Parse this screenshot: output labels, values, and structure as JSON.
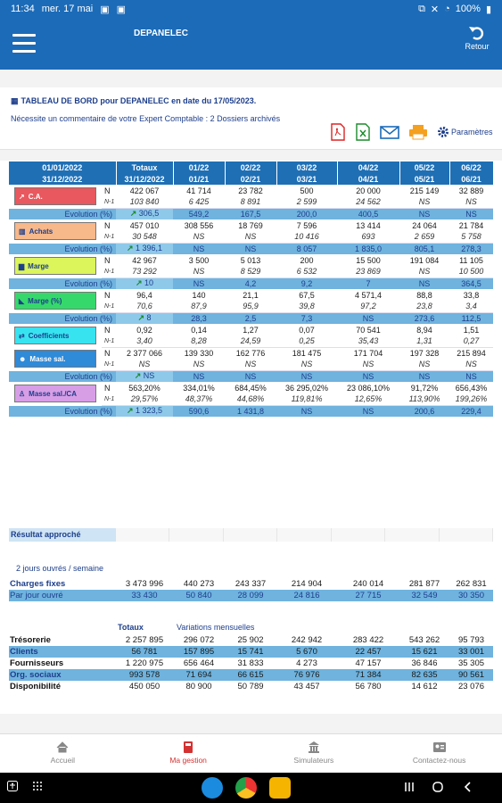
{
  "status_bar": {
    "time": "11:34",
    "date": "mer. 17 mai",
    "battery": "100%"
  },
  "app_bar": {
    "title": "DEPANELEC",
    "back_label": "Retour"
  },
  "info": {
    "title": "TABLEAU DE BORD pour DEPANELEC en date du 17/05/2023.",
    "note": "Nécessite un commentaire de votre Expert Comptable : 2 Dossiers archivés",
    "params_label": "Paramètres"
  },
  "table": {
    "header_top": [
      "01/01/2022",
      "Totaux",
      "01/22",
      "02/22",
      "03/22",
      "04/22",
      "05/22",
      "06/22"
    ],
    "header_bottom": [
      "31/12/2022",
      "31/12/2022",
      "01/21",
      "02/21",
      "03/21",
      "04/21",
      "05/21",
      "06/21"
    ],
    "evolution_label": "Evolution (%)",
    "groups": [
      {
        "label": "C.A.",
        "icon": "chart-line-icon",
        "n": [
          "422 067",
          "41 714",
          "23 782",
          "500",
          "20 000",
          "215 149",
          "32 889"
        ],
        "n1": [
          "103 840",
          "6 425",
          "8 891",
          "2 599",
          "24 562",
          "NS",
          "NS"
        ],
        "evol": [
          "306,5",
          "549,2",
          "167,5",
          "200,0",
          "400,5",
          "NS",
          "NS"
        ]
      },
      {
        "label": "Achats",
        "icon": "building-icon",
        "n": [
          "457 010",
          "308 556",
          "18 769",
          "7 596",
          "13 414",
          "24 064",
          "21 784"
        ],
        "n1": [
          "30 548",
          "NS",
          "NS",
          "10 416",
          "693",
          "2 659",
          "5 758"
        ],
        "evol": [
          "1 396,1",
          "NS",
          "NS",
          "8 057",
          "1 835,0",
          "805,1",
          "278,3"
        ]
      },
      {
        "label": "Marge",
        "icon": "bar-chart-icon",
        "n": [
          "42 967",
          "3 500",
          "5 013",
          "200",
          "15 500",
          "191 084",
          "11 105"
        ],
        "n1": [
          "73 292",
          "NS",
          "8 529",
          "6 532",
          "23 869",
          "NS",
          "10 500"
        ],
        "evol": [
          "10",
          "NS",
          "4,2",
          "9,2",
          "7",
          "NS",
          "364,5"
        ]
      },
      {
        "label": "Marge (%)",
        "icon": "area-chart-icon",
        "n": [
          "96,4",
          "140",
          "21,1",
          "67,5",
          "4 571,4",
          "88,8",
          "33,8"
        ],
        "n1": [
          "70,6",
          "87,9",
          "95,9",
          "39,8",
          "97,2",
          "23,8",
          "3,4"
        ],
        "evol": [
          "8",
          "28,3",
          "2,5",
          "7,3",
          "NS",
          "273,6",
          "112,5"
        ]
      },
      {
        "label": "Coefficients",
        "icon": "arrows-icon",
        "n": [
          "0,92",
          "0,14",
          "1,27",
          "0,07",
          "70 541",
          "8,94",
          "1,51"
        ],
        "n1": [
          "3,40",
          "8,28",
          "24,59",
          "0,25",
          "35,43",
          "1,31",
          "0,27"
        ],
        "evol": []
      },
      {
        "label": "Masse sal.",
        "icon": "users-icon",
        "n": [
          "2 377 066",
          "139 330",
          "162 776",
          "181 475",
          "171 704",
          "197 328",
          "215 894"
        ],
        "n1": [
          "NS",
          "NS",
          "NS",
          "NS",
          "NS",
          "NS",
          "NS"
        ],
        "evol": [
          "NS",
          "NS",
          "NS",
          "NS",
          "NS",
          "NS",
          "NS"
        ]
      },
      {
        "label": "Masse sal./CA",
        "icon": "user-icon",
        "n": [
          "563,20%",
          "334,01%",
          "684,45%",
          "36 295,02%",
          "23 086,10%",
          "91,72%",
          "656,43%"
        ],
        "n1": [
          "29,57%",
          "48,37%",
          "44,68%",
          "119,81%",
          "12,65%",
          "113,90%",
          "199,26%"
        ],
        "evol": [
          "1 323,5",
          "590,6",
          "1 431,8",
          "NS",
          "NS",
          "200,6",
          "229,4"
        ]
      }
    ]
  },
  "resultat_label": "Résultat approché",
  "jours_label": "2 jours ouvrés / semaine",
  "charges": {
    "label": "Charges fixes",
    "values": [
      "3 473 996",
      "440 273",
      "243 337",
      "214 904",
      "240 014",
      "281 877",
      "262 831"
    ],
    "per_day_label": "Par jour ouvré",
    "per_day": [
      "33 430",
      "50 840",
      "28 099",
      "24 816",
      "27 715",
      "32 549",
      "30 350"
    ]
  },
  "treso_head": {
    "totaux": "Totaux",
    "variations": "Variations mensuelles"
  },
  "treso_rows": [
    {
      "label": "Trésorerie",
      "values": [
        "2 257 895",
        "296 072",
        "25 902",
        "242 942",
        "283 422",
        "543 262",
        "95 793"
      ]
    },
    {
      "label": "Clients",
      "values": [
        "56 781",
        "157 895",
        "15 741",
        "5 670",
        "22 457",
        "15 621",
        "33 001"
      ]
    },
    {
      "label": "Fournisseurs",
      "values": [
        "1 220 975",
        "656 464",
        "31 833",
        "4 273",
        "47 157",
        "36 846",
        "35 305"
      ]
    },
    {
      "label": "Org. sociaux",
      "values": [
        "993 578",
        "71 694",
        "66 615",
        "76 976",
        "71 384",
        "82 635",
        "90 561"
      ]
    },
    {
      "label": "Disponibilité",
      "values": [
        "450 050",
        "80 900",
        "50 789",
        "43 457",
        "56 780",
        "14 612",
        "23 076"
      ]
    }
  ],
  "nav": {
    "accueil": "Accueil",
    "gestion": "Ma gestion",
    "simulateurs": "Simulateurs",
    "contact": "Contactez-nous"
  }
}
